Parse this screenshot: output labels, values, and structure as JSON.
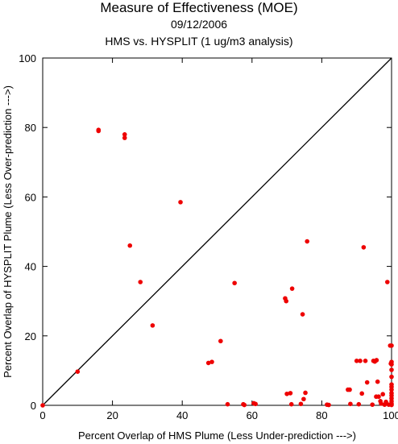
{
  "chart_data": {
    "type": "scatter",
    "title": "Measure of Effectiveness (MOE)",
    "subtitle": "09/12/2006",
    "subtitle2": "HMS vs. HYSPLIT  (1 ug/m3 analysis)",
    "xlabel": "Percent Overlap of HMS Plume (Less Under-prediction --->)",
    "ylabel": "Percent Overlap of HYSPLIT Plume (Less Over-prediction --->)",
    "xlim": [
      0,
      100
    ],
    "ylim": [
      0,
      100
    ],
    "xticks": [
      0,
      20,
      40,
      60,
      80,
      100
    ],
    "yticks": [
      0,
      20,
      40,
      60,
      80,
      100
    ],
    "diagonal_line": [
      [
        0,
        0
      ],
      [
        100,
        100
      ]
    ],
    "grid": false,
    "marker_color": "#ee0000",
    "line_color": "#000000",
    "points": [
      [
        0,
        0
      ],
      [
        10,
        9.7
      ],
      [
        16,
        79
      ],
      [
        16,
        79.3
      ],
      [
        23.5,
        78
      ],
      [
        23.5,
        77
      ],
      [
        25,
        46
      ],
      [
        28,
        35.5
      ],
      [
        31.5,
        23
      ],
      [
        39.5,
        58.5
      ],
      [
        47.5,
        12.2
      ],
      [
        48.5,
        12.5
      ],
      [
        51,
        18.5
      ],
      [
        53,
        0.3
      ],
      [
        55,
        35.2
      ],
      [
        57.5,
        0.3
      ],
      [
        57.8,
        0.1
      ],
      [
        60.5,
        0.6
      ],
      [
        61,
        0.4
      ],
      [
        69.5,
        30.8
      ],
      [
        69.8,
        30
      ],
      [
        70,
        3.3
      ],
      [
        71,
        3.5
      ],
      [
        71.3,
        0.3
      ],
      [
        71.5,
        33.6
      ],
      [
        74,
        0.4
      ],
      [
        74.5,
        26.2
      ],
      [
        74.8,
        1.8
      ],
      [
        75.3,
        3.6
      ],
      [
        75.8,
        47.2
      ],
      [
        81.5,
        0.2
      ],
      [
        82,
        0.1
      ],
      [
        87.5,
        4.5
      ],
      [
        88,
        4.5
      ],
      [
        88.2,
        0.4
      ],
      [
        90,
        12.8
      ],
      [
        90.6,
        0.3
      ],
      [
        91,
        12.8
      ],
      [
        91.5,
        3.4
      ],
      [
        92,
        45.5
      ],
      [
        92.5,
        12.8
      ],
      [
        93,
        6.6
      ],
      [
        94.5,
        0.2
      ],
      [
        94.8,
        12.8
      ],
      [
        95.2,
        12.6
      ],
      [
        95.6,
        2.5
      ],
      [
        95.7,
        13
      ],
      [
        96,
        6.8
      ],
      [
        96.3,
        2.5
      ],
      [
        96.8,
        1.2
      ],
      [
        97,
        0.5
      ],
      [
        97.5,
        3.2
      ],
      [
        98,
        0.2
      ],
      [
        98.4,
        1
      ],
      [
        98.8,
        35.5
      ],
      [
        99.2,
        0.2
      ],
      [
        99.6,
        17.2
      ],
      [
        99.8,
        12
      ],
      [
        100,
        17.2
      ],
      [
        100,
        12.5
      ],
      [
        100,
        11.8
      ],
      [
        100,
        10.2
      ],
      [
        100,
        8.2
      ],
      [
        100,
        6
      ],
      [
        100,
        5.3
      ],
      [
        100,
        4.5
      ],
      [
        100,
        3.5
      ],
      [
        100,
        2.8
      ],
      [
        100,
        2
      ],
      [
        100,
        1.2
      ],
      [
        100,
        0.5
      ],
      [
        100,
        0.1
      ]
    ]
  }
}
